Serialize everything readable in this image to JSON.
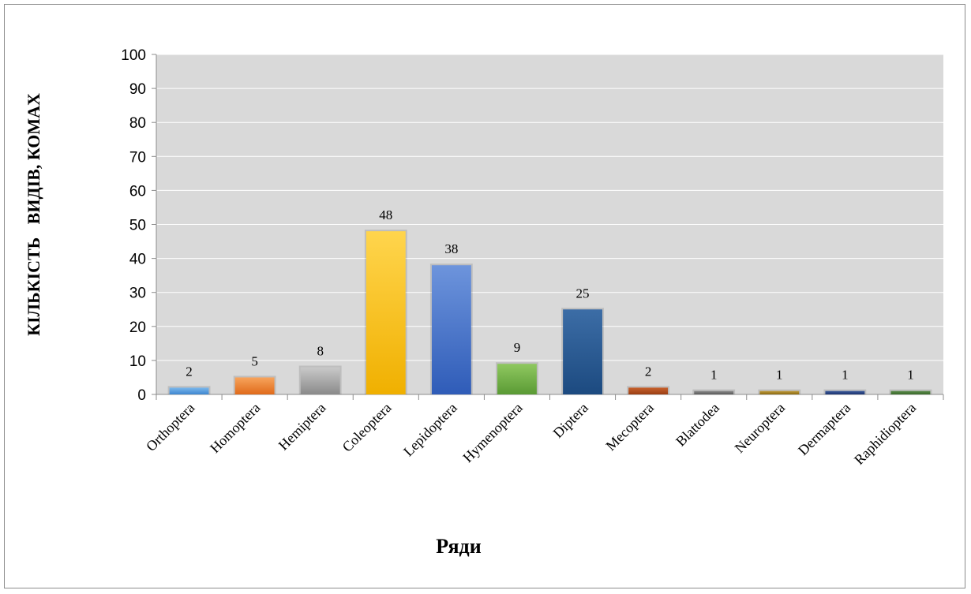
{
  "chart_data": {
    "type": "bar",
    "categories": [
      "Orthoptera",
      "Homoptera",
      "Hemiptera",
      "Coleoptera",
      "Lepidoptera",
      "Hymenoptera",
      "Diptera",
      "Mecoptera",
      "Blattodea",
      "Neuroptera",
      "Dermaptera",
      "Raphidioptera"
    ],
    "values": [
      2,
      5,
      8,
      48,
      38,
      9,
      25,
      2,
      1,
      1,
      1,
      1
    ],
    "colors": [
      [
        "#7cb8ec",
        "#3d86cf"
      ],
      [
        "#f7a45c",
        "#e06a1a"
      ],
      [
        "#c9c9c9",
        "#8a8a8a"
      ],
      [
        "#ffd54d",
        "#f0b000"
      ],
      [
        "#6d94dc",
        "#2f5cb8"
      ],
      [
        "#8fc860",
        "#5a9a34"
      ],
      [
        "#3c6da6",
        "#1c4a80"
      ],
      [
        "#c8622e",
        "#9a3d12"
      ],
      [
        "#8a8a8a",
        "#5a5a5a"
      ],
      [
        "#c09a3a",
        "#8a6a12"
      ],
      [
        "#3a5a9a",
        "#1c3470"
      ],
      [
        "#5a8a4a",
        "#3a6a2a"
      ]
    ],
    "xlabel": "Ряди",
    "ylabel": "КІЛЬКІСТЬ   ВИДІВ, КОМАХ",
    "ylim": [
      0,
      100
    ],
    "yticks": [
      0,
      10,
      20,
      30,
      40,
      50,
      60,
      70,
      80,
      90,
      100
    ],
    "grid": true,
    "plot_background": "#d9d9d9",
    "gridline_color": "#ffffff"
  }
}
